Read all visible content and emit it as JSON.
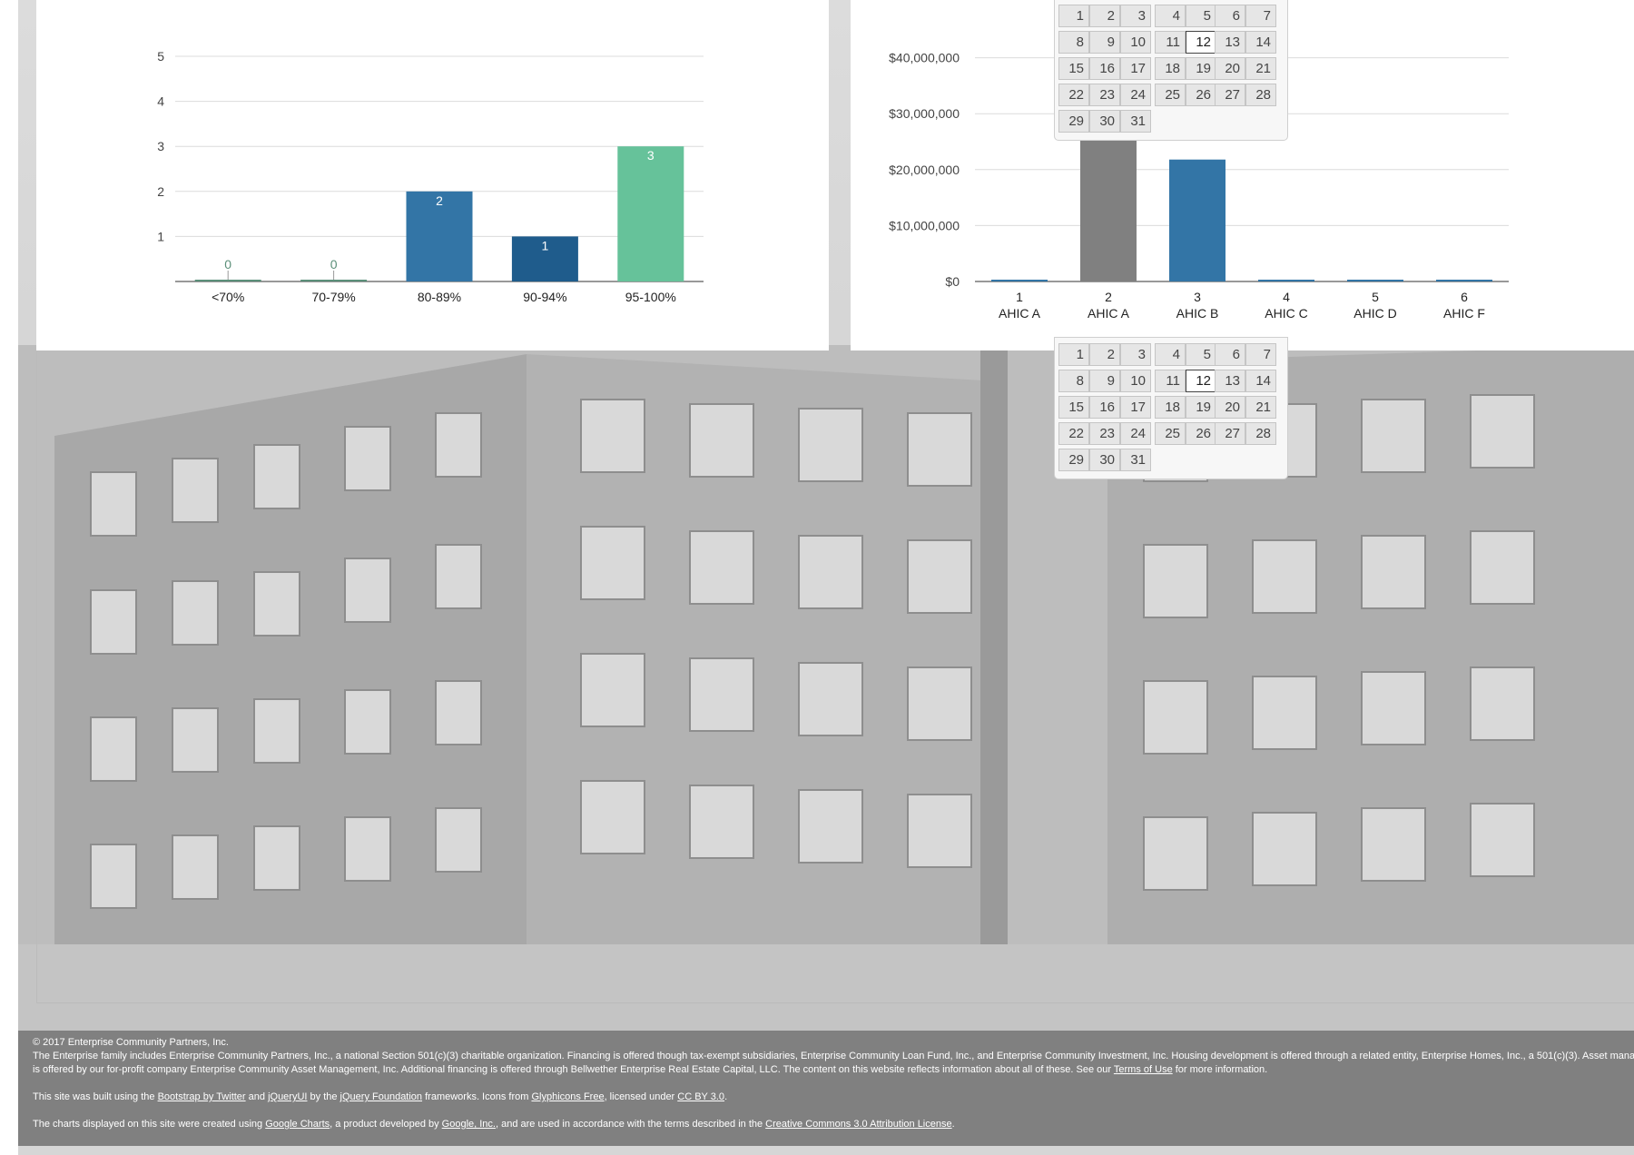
{
  "chart_data": [
    {
      "type": "bar",
      "categories": [
        "<70%",
        "70-79%",
        "80-89%",
        "90-94%",
        "95-100%"
      ],
      "values": [
        0,
        0,
        2,
        1,
        3
      ],
      "colors": [
        "#5b8f79",
        "#5b8f79",
        "#3375a6",
        "#1f5c8c",
        "#66c29a"
      ],
      "yticks": [
        1,
        2,
        3,
        4,
        5
      ],
      "ylim": [
        0,
        5
      ],
      "grid": true,
      "data_labels": [
        "0",
        "0",
        "2",
        "1",
        "3"
      ]
    },
    {
      "type": "bar",
      "categories": [
        "1",
        "2",
        "3",
        "4",
        "5",
        "6"
      ],
      "category_sublabels": [
        "AHIC A",
        "AHIC A",
        "AHIC B",
        "AHIC C",
        "AHIC D",
        "AHIC F"
      ],
      "values": [
        0,
        25500000,
        21800000,
        0,
        0,
        0
      ],
      "colors": [
        "#3375a6",
        "#808080",
        "#3375a6",
        "#3375a6",
        "#3375a6",
        "#3375a6"
      ],
      "ytick_values": [
        0,
        10000000,
        20000000,
        30000000,
        40000000
      ],
      "ytick_labels": [
        "$0",
        "$10,000,000",
        "$20,000,000",
        "$30,000,000",
        "$40,000,000"
      ],
      "ylim": [
        0,
        50000000
      ],
      "grid": true
    }
  ],
  "datepicker": {
    "days": [
      "1",
      "2",
      "3",
      "4",
      "5",
      "6",
      "7",
      "8",
      "9",
      "10",
      "11",
      "12",
      "13",
      "14",
      "15",
      "16",
      "17",
      "18",
      "19",
      "20",
      "21",
      "22",
      "23",
      "24",
      "25",
      "26",
      "27",
      "28",
      "29",
      "30",
      "31"
    ],
    "today": "12"
  },
  "footer": {
    "copyright": "© 2017 Enterprise Community Partners, Inc.",
    "line1": "The Enterprise family includes Enterprise Community Partners, Inc., a national Section 501(c)(3) charitable organization. Financing is offered though tax-exempt subsidiaries, Enterprise Community Loan Fund, Inc., and Enterprise Community Investment, Inc. Housing development is offered through a related entity, Enterprise Homes, Inc., a 501(c)(3). Asset manag",
    "line2_pre": "is offered by our for-profit company Enterprise Community Asset Management, Inc. Additional financing is offered through Bellwether Enterprise Real Estate Capital, LLC. The content on this website reflects information about all of these. See our ",
    "terms_link": "Terms of Use",
    "line2_post": " for more information.",
    "built_pre": "This site was built using the ",
    "bootstrap_link": "Bootstrap by Twitter",
    "and": " and ",
    "jqueryui_link": "jQueryUI",
    "by_the": " by the ",
    "jquery_foundation_link": "jQuery Foundation",
    "frameworks_icons": " frameworks. Icons from ",
    "glyphicons_link": "Glyphicons Free",
    "licensed_under": ", licensed under ",
    "ccby_link": "CC BY 3.0",
    "period": ".",
    "charts_pre": "The charts displayed on this site were created using ",
    "google_charts_link": "Google Charts",
    "product_by": ", a product developed by ",
    "google_inc_link": "Google, Inc.",
    "terms_text": ", and are used in accordance with the terms described in the ",
    "cc_attr_link": "Creative Commons 3.0 Attribution License",
    "period2": "."
  }
}
